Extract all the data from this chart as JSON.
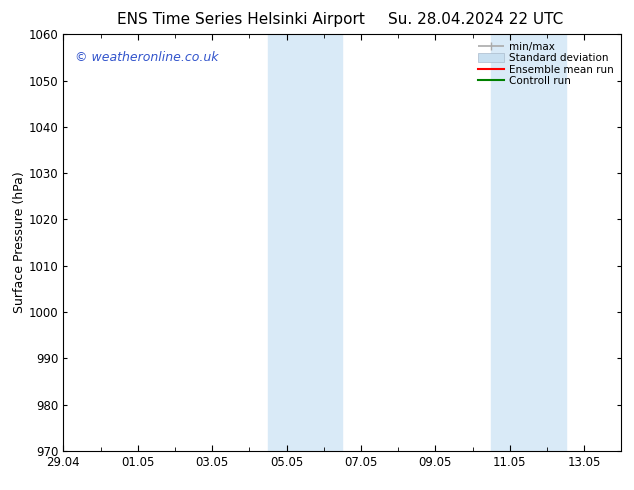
{
  "title_left": "ENS Time Series Helsinki Airport",
  "title_right": "Su. 28.04.2024 22 UTC",
  "ylabel": "Surface Pressure (hPa)",
  "ylim": [
    970,
    1060
  ],
  "yticks": [
    970,
    980,
    990,
    1000,
    1010,
    1020,
    1030,
    1040,
    1050,
    1060
  ],
  "xlim": [
    0,
    15
  ],
  "xticks_major_positions": [
    0,
    2,
    4,
    6,
    8,
    10,
    12,
    14
  ],
  "xticks_major_labels": [
    "29.04",
    "01.05",
    "03.05",
    "05.05",
    "07.05",
    "09.05",
    "11.05",
    "13.05"
  ],
  "xticks_minor_positions": [
    0,
    1,
    2,
    3,
    4,
    5,
    6,
    7,
    8,
    9,
    10,
    11,
    12,
    13,
    14
  ],
  "shaded_regions": [
    {
      "x_start": 5.5,
      "x_end": 6.5,
      "color": "#d9eaf7"
    },
    {
      "x_start": 6.5,
      "x_end": 7.5,
      "color": "#d9eaf7"
    },
    {
      "x_start": 11.5,
      "x_end": 12.5,
      "color": "#d9eaf7"
    },
    {
      "x_start": 12.5,
      "x_end": 13.5,
      "color": "#d9eaf7"
    }
  ],
  "legend_items": [
    {
      "label": "min/max"
    },
    {
      "label": "Standard deviation"
    },
    {
      "label": "Ensemble mean run"
    },
    {
      "label": "Controll run"
    }
  ],
  "legend_colors": [
    "#aaaaaa",
    "#c8dff0",
    "#ff0000",
    "#008000"
  ],
  "watermark": "© weatheronline.co.uk",
  "watermark_color": "#3355cc",
  "background_color": "#ffffff",
  "axis_color": "#000000",
  "tick_label_fontsize": 8.5,
  "title_fontsize": 11,
  "ylabel_fontsize": 9
}
